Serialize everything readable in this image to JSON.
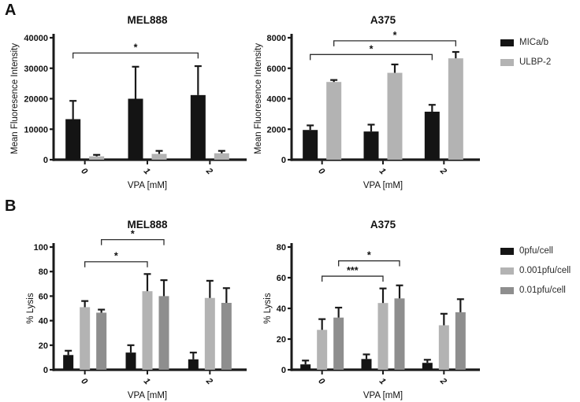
{
  "figure": {
    "panel_a_label": "A",
    "panel_b_label": "B"
  },
  "colors": {
    "black_series": "#141414",
    "light_gray_series": "#b3b3b3",
    "mid_gray_series": "#8e8e8e",
    "axis": "#1a1a1a",
    "bracket": "#2e2e2e",
    "text": "#111111"
  },
  "legends": {
    "panel_a": {
      "items": [
        {
          "label": "MICa/b",
          "color": "#141414"
        },
        {
          "label": "ULBP-2",
          "color": "#b3b3b3"
        }
      ]
    },
    "panel_b": {
      "items": [
        {
          "label": "0pfu/cell",
          "color": "#141414"
        },
        {
          "label": "0.001pfu/cell",
          "color": "#b3b3b3"
        },
        {
          "label": "0.01pfu/cell",
          "color": "#8e8e8e"
        }
      ]
    }
  },
  "chart_data": [
    {
      "id": "panel-a-mel888",
      "type": "bar",
      "title": "MEL888",
      "categories": [
        "0",
        "1",
        "2"
      ],
      "xlabel": "VPA [mM]",
      "ylabel": "Mean Fluoresence Intensity",
      "ylim": [
        0,
        40000
      ],
      "ytick_step": 10000,
      "grid": false,
      "legend_ref": "panel_a",
      "series": [
        {
          "name": "MICa/b",
          "color": "#141414",
          "values": [
            13300,
            20000,
            21200
          ],
          "errors_plus": [
            6000,
            10500,
            9500
          ]
        },
        {
          "name": "ULBP-2",
          "color": "#b3b3b3",
          "values": [
            1100,
            1900,
            2100
          ],
          "errors_plus": [
            500,
            1000,
            800
          ]
        }
      ],
      "significance": [
        {
          "label": "*",
          "from_series": 0,
          "from_group": 0,
          "to_series": 0,
          "to_group": 2,
          "y": 35000
        }
      ]
    },
    {
      "id": "panel-a-a375",
      "type": "bar",
      "title": "A375",
      "categories": [
        "0",
        "1",
        "2"
      ],
      "xlabel": "VPA [mM]",
      "ylabel": "Mean Fluoresence Intensity",
      "ylim": [
        0,
        8000
      ],
      "ytick_step": 2000,
      "grid": false,
      "legend_ref": "panel_a",
      "series": [
        {
          "name": "MICa/b",
          "color": "#141414",
          "values": [
            1950,
            1850,
            3150
          ],
          "errors_plus": [
            300,
            450,
            450
          ]
        },
        {
          "name": "ULBP-2",
          "color": "#b3b3b3",
          "values": [
            5100,
            5700,
            6650
          ],
          "errors_plus": [
            130,
            550,
            420
          ]
        }
      ],
      "significance": [
        {
          "label": "*",
          "from_series": 1,
          "from_group": 0,
          "to_series": 1,
          "to_group": 2,
          "y": 7800
        },
        {
          "label": "*",
          "from_series": 0,
          "from_group": 0,
          "to_series": 0,
          "to_group": 2,
          "y": 6900
        }
      ]
    },
    {
      "id": "panel-b-mel888",
      "type": "bar",
      "title": "MEL888",
      "categories": [
        "0",
        "1",
        "2"
      ],
      "xlabel": "VPA [mM]",
      "ylabel": "% Lysis",
      "ylim": [
        0,
        100
      ],
      "ytick_step": 20,
      "grid": false,
      "legend_ref": "panel_b",
      "series": [
        {
          "name": "0pfu/cell",
          "color": "#141414",
          "values": [
            12,
            14,
            8.5
          ],
          "errors_plus": [
            3.5,
            6,
            5.5
          ]
        },
        {
          "name": "0.001pfu/cell",
          "color": "#b3b3b3",
          "values": [
            51,
            64,
            58.5
          ],
          "errors_plus": [
            5,
            14,
            14
          ]
        },
        {
          "name": "0.01pfu/cell",
          "color": "#8e8e8e",
          "values": [
            46.5,
            60,
            54.5
          ],
          "errors_plus": [
            2.5,
            13,
            12
          ]
        }
      ],
      "significance": [
        {
          "label": "*",
          "from_series": 2,
          "from_group": 0,
          "to_series": 2,
          "to_group": 1,
          "y": 106
        },
        {
          "label": "*",
          "from_series": 1,
          "from_group": 0,
          "to_series": 1,
          "to_group": 1,
          "y": 88
        }
      ]
    },
    {
      "id": "panel-b-a375",
      "type": "bar",
      "title": "A375",
      "categories": [
        "0",
        "1",
        "2"
      ],
      "xlabel": "VPA [mM]",
      "ylabel": "% Lysis",
      "ylim": [
        0,
        80
      ],
      "ytick_step": 20,
      "grid": false,
      "legend_ref": "panel_b",
      "series": [
        {
          "name": "0pfu/cell",
          "color": "#141414",
          "values": [
            3.5,
            7,
            4.5
          ],
          "errors_plus": [
            2.5,
            3,
            2
          ]
        },
        {
          "name": "0.001pfu/cell",
          "color": "#b3b3b3",
          "values": [
            26,
            43.5,
            29
          ],
          "errors_plus": [
            7,
            9.5,
            7.5
          ]
        },
        {
          "name": "0.01pfu/cell",
          "color": "#8e8e8e",
          "values": [
            34,
            46.5,
            37.5
          ],
          "errors_plus": [
            6.5,
            8.5,
            8.5
          ]
        }
      ],
      "significance": [
        {
          "label": "*",
          "from_series": 2,
          "from_group": 0,
          "to_series": 2,
          "to_group": 1,
          "y": 71
        },
        {
          "label": "***",
          "from_series": 1,
          "from_group": 0,
          "to_series": 1,
          "to_group": 1,
          "y": 61
        }
      ]
    }
  ]
}
